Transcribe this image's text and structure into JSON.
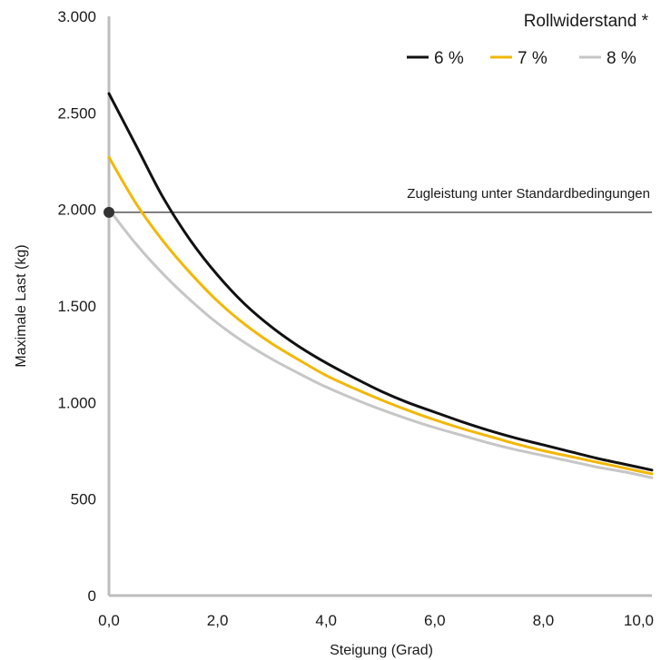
{
  "chart_data": {
    "type": "line",
    "title": "",
    "xlabel": "Steigung (Grad)",
    "ylabel": "Maximale Last (kg)",
    "xlim": [
      0,
      10
    ],
    "ylim": [
      0,
      3000
    ],
    "x_ticks": [
      0,
      2,
      4,
      6,
      8,
      10
    ],
    "x_tick_labels": [
      "0,0",
      "2,0",
      "4,0",
      "6,0",
      "8,0",
      "10,0"
    ],
    "y_ticks": [
      0,
      500,
      1000,
      1500,
      2000,
      2500,
      3000
    ],
    "y_tick_labels": [
      "0",
      "500",
      "1.000",
      "1.500",
      "2.000",
      "2.500",
      "3.000"
    ],
    "legend_title": "Rollwiderstand *",
    "legend_position": "top-right",
    "grid": false,
    "series": [
      {
        "name": "6 %",
        "color": "#111111",
        "x": [
          0,
          0.5,
          1,
          1.5,
          2,
          2.5,
          3,
          3.5,
          4,
          4.5,
          5,
          5.5,
          6,
          6.5,
          7,
          7.5,
          8,
          8.5,
          9,
          9.5,
          10
        ],
        "values": [
          2600,
          2330,
          2060,
          1840,
          1660,
          1510,
          1390,
          1290,
          1205,
          1130,
          1060,
          1000,
          950,
          900,
          855,
          815,
          780,
          745,
          710,
          680,
          650
        ]
      },
      {
        "name": "7 %",
        "color": "#f2b705",
        "x": [
          0,
          0.5,
          1,
          1.5,
          2,
          2.5,
          3,
          3.5,
          4,
          4.5,
          5,
          5.5,
          6,
          6.5,
          7,
          7.5,
          8,
          8.5,
          9,
          9.5,
          10
        ],
        "values": [
          2270,
          2030,
          1835,
          1670,
          1525,
          1405,
          1305,
          1220,
          1140,
          1075,
          1015,
          960,
          910,
          865,
          825,
          785,
          750,
          720,
          690,
          660,
          630
        ]
      },
      {
        "name": "8 %",
        "color": "#c6c6c6",
        "x": [
          0,
          0.5,
          1,
          1.5,
          2,
          2.5,
          3,
          3.5,
          4,
          4.5,
          5,
          5.5,
          6,
          6.5,
          7,
          7.5,
          8,
          8.5,
          9,
          9.5,
          10
        ],
        "values": [
          2000,
          1820,
          1665,
          1530,
          1410,
          1310,
          1225,
          1150,
          1080,
          1020,
          965,
          915,
          870,
          830,
          790,
          755,
          725,
          695,
          665,
          640,
          610
        ]
      }
    ],
    "reference_line": {
      "y": 1985,
      "label": "Zugleistung unter Standardbedingungen",
      "color": "#333333"
    },
    "marker_point": {
      "x": 0,
      "y": 1985,
      "color": "#333333"
    }
  }
}
